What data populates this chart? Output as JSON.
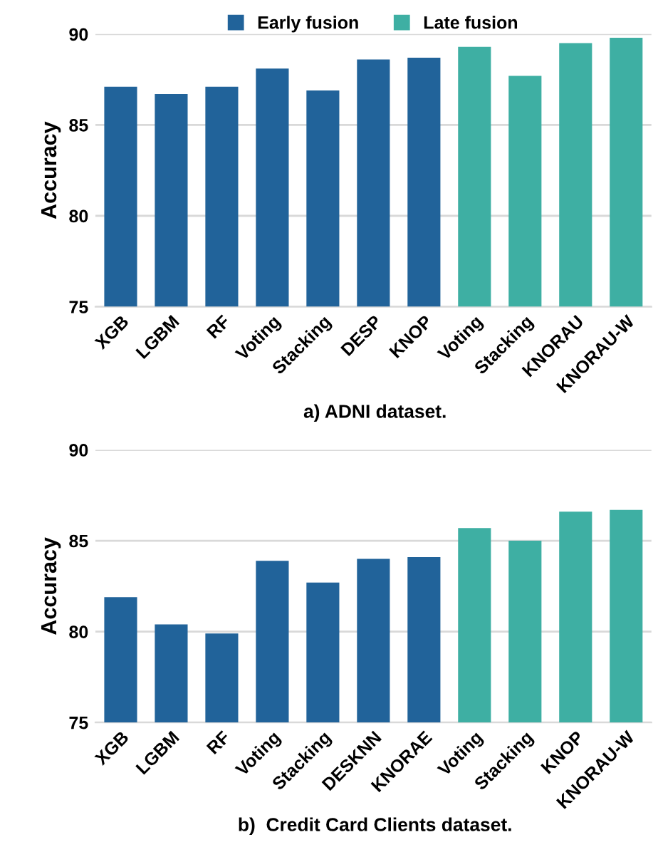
{
  "chart_data": [
    {
      "type": "bar",
      "ylabel": "Accuracy",
      "annotations": [
        "a) ADNI dataset."
      ],
      "categories": [
        "XGB",
        "LGBM",
        "RF",
        "Voting",
        "Stacking",
        "DESP",
        "KNOP",
        "Voting",
        "Stacking",
        "KNORAU",
        "KNORAU-W"
      ],
      "series": [
        {
          "name": "Early fusion",
          "color": "#21639a",
          "values": [
            87.1,
            86.7,
            87.1,
            88.1,
            86.9,
            88.6,
            88.7,
            null,
            null,
            null,
            null
          ]
        },
        {
          "name": "Late fusion",
          "color": "#3eafa3",
          "values": [
            null,
            null,
            null,
            null,
            null,
            null,
            null,
            89.3,
            87.7,
            89.5,
            89.8
          ]
        }
      ],
      "ylim": [
        75,
        90
      ],
      "yticks": [
        75,
        80,
        85,
        90
      ],
      "grid": "y",
      "legend": "top"
    },
    {
      "type": "bar",
      "ylabel": "Accuracy",
      "annotations": [
        "b)  Credit Card Clients dataset."
      ],
      "categories": [
        "XGB",
        "LGBM",
        "RF",
        "Voting",
        "Stacking",
        "DESKNN",
        "KNORAE",
        "Voting",
        "Stacking",
        "KNOP",
        "KNORAU-W"
      ],
      "series": [
        {
          "color": "#21639a",
          "values": [
            81.9,
            80.4,
            79.9,
            83.9,
            82.7,
            84.0,
            84.1,
            null,
            null,
            null,
            null
          ]
        },
        {
          "color": "#3eafa3",
          "values": [
            null,
            null,
            null,
            null,
            null,
            null,
            null,
            85.7,
            85.0,
            86.6,
            86.7
          ]
        }
      ],
      "ylim": [
        75,
        90
      ],
      "yticks": [
        75,
        80,
        85,
        90
      ],
      "grid": "y"
    }
  ]
}
